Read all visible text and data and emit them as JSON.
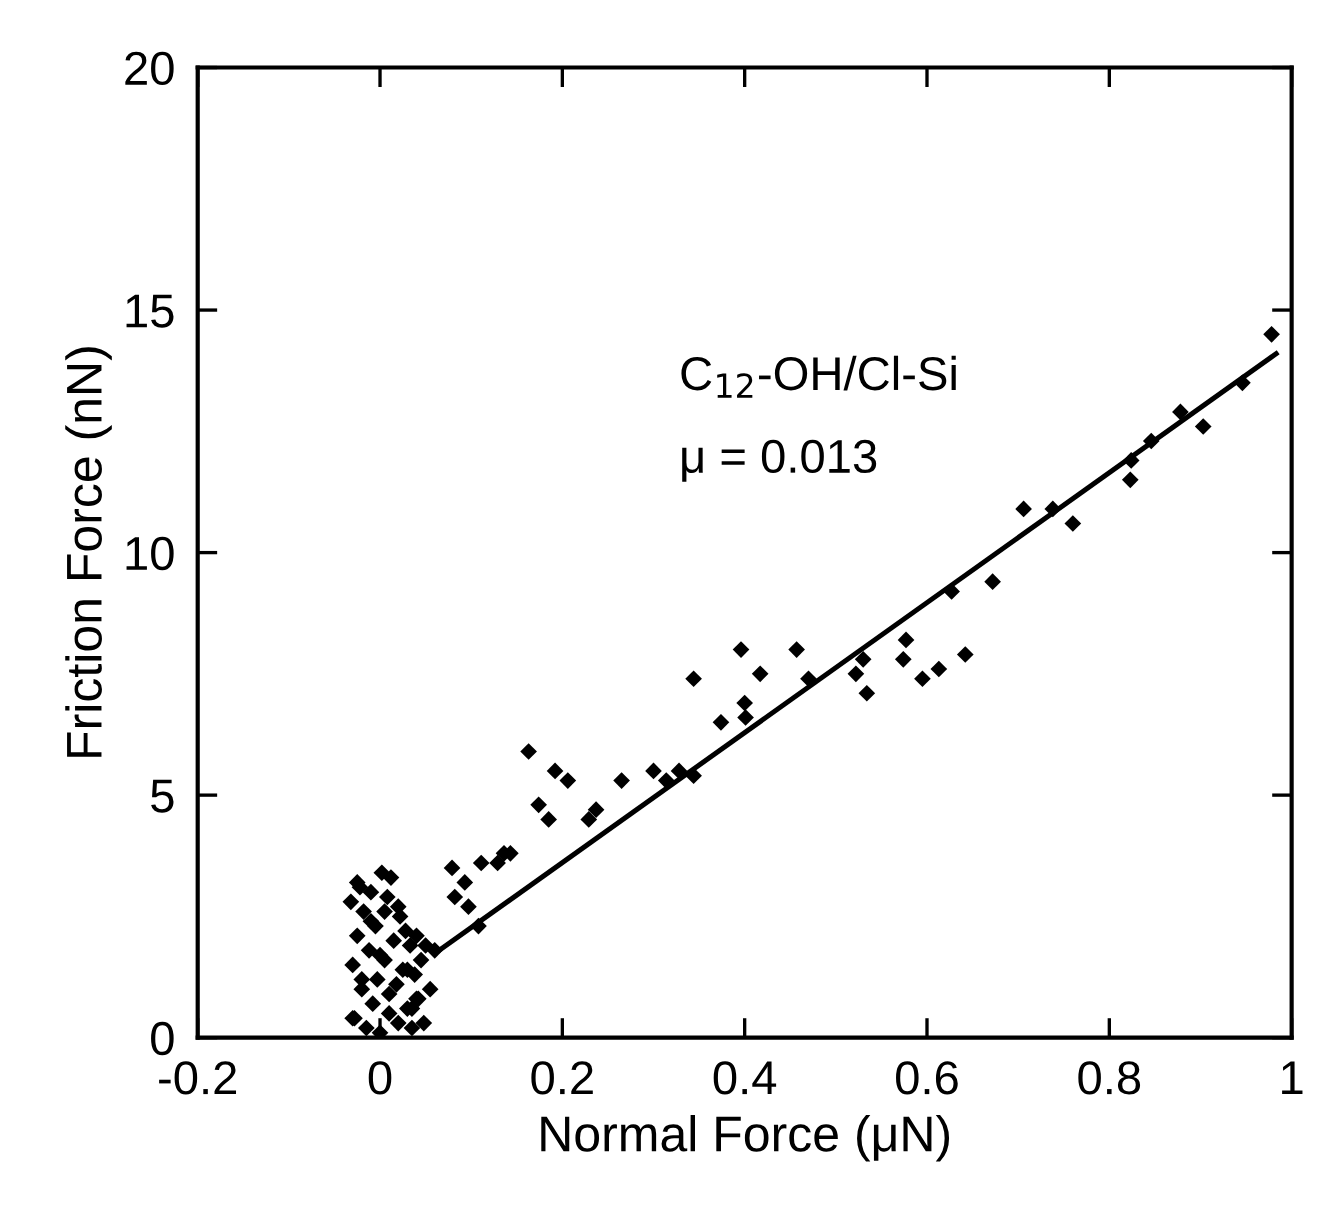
{
  "chart_data": {
    "type": "scatter",
    "xlabel": "Normal Force (μN)",
    "ylabel": "Friction Force (nN)",
    "annotations": [
      "C$_{12}$-OH/Cl-Si",
      "μ = 0.013"
    ],
    "xlim": [
      -0.2,
      1
    ],
    "ylim": [
      0,
      20
    ],
    "xticks": [
      {
        "value": -0.2,
        "label": "-0.2"
      },
      0,
      0.2,
      0.4,
      0.6,
      0.8,
      1
    ],
    "yticks": [
      0,
      5,
      10,
      15,
      20
    ],
    "grid": false,
    "legend": false,
    "marker": "diamond",
    "series": [
      {
        "color": "#000000",
        "x": [
          0.978,
          0.946,
          0.903,
          0.878,
          0.846,
          0.824,
          0.823,
          0.76,
          0.738,
          0.706,
          0.672,
          0.627,
          0.642,
          0.613,
          0.595,
          0.574,
          0.577,
          0.534,
          0.53,
          0.522,
          0.47,
          0.457,
          0.417,
          0.396,
          0.4,
          0.401,
          0.374,
          0.344,
          0.344,
          0.328,
          0.314,
          0.3,
          0.265,
          0.237,
          0.229,
          0.206,
          0.192,
          0.185,
          0.174,
          0.163,
          0.136,
          0.129,
          0.111,
          0.093,
          0.079,
          0.082,
          0.097,
          0.108,
          0.143,
          -0.032,
          -0.03,
          -0.028,
          -0.025,
          -0.022,
          -0.02,
          -0.018,
          -0.015,
          -0.012,
          -0.01,
          -0.008,
          -0.005,
          -0.003,
          0.0,
          0.002,
          0.005,
          0.008,
          0.01,
          0.012,
          0.015,
          0.018,
          0.02,
          0.022,
          0.025,
          0.028,
          0.03,
          0.033,
          0.035,
          0.038,
          0.04,
          0.042,
          0.045,
          0.048,
          0.05,
          0.055,
          0.06,
          -0.03,
          -0.02,
          -0.01,
          0.0,
          0.01,
          0.02,
          0.03,
          0.04,
          -0.025,
          0.005,
          0.035
        ],
        "values": [
          14.5,
          13.5,
          12.6,
          12.9,
          12.3,
          11.9,
          11.5,
          10.6,
          10.9,
          10.9,
          9.4,
          9.2,
          7.9,
          7.6,
          7.4,
          7.8,
          8.2,
          7.1,
          7.8,
          7.5,
          7.4,
          8.0,
          7.5,
          8.0,
          6.9,
          6.6,
          6.5,
          7.4,
          5.4,
          5.5,
          5.3,
          5.5,
          5.3,
          4.7,
          4.5,
          5.3,
          5.5,
          4.5,
          4.8,
          5.9,
          3.8,
          3.6,
          3.6,
          3.2,
          3.5,
          2.9,
          2.7,
          2.3,
          3.8,
          2.8,
          1.5,
          0.4,
          2.1,
          3.1,
          1.0,
          2.6,
          0.2,
          1.8,
          3.0,
          0.7,
          2.3,
          1.2,
          0.1,
          3.4,
          1.6,
          2.9,
          0.5,
          3.3,
          2.0,
          1.1,
          0.3,
          2.5,
          1.4,
          2.2,
          0.6,
          1.9,
          0.2,
          1.3,
          2.1,
          0.8,
          1.6,
          0.3,
          1.9,
          1.0,
          1.8,
          0.4,
          1.2,
          2.4,
          1.7,
          0.9,
          2.7,
          1.4,
          0.8,
          3.2,
          2.6,
          0.6
        ]
      },
      {
        "type": "line",
        "color": "#000000",
        "marker": "none",
        "line_style": "solid",
        "x": [
          0.065,
          0.983
        ],
        "values": [
          1.8,
          14.1
        ]
      }
    ]
  }
}
